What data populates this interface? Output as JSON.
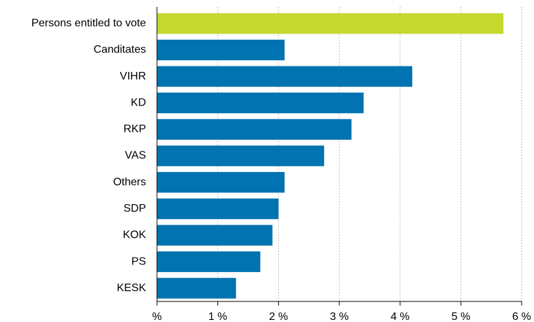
{
  "chart_data": {
    "type": "bar",
    "orientation": "horizontal",
    "categories": [
      "Persons entitled to vote",
      "Canditates",
      "VIHR",
      "KD",
      "RKP",
      "VAS",
      "Others",
      "SDP",
      "KOK",
      "PS",
      "KESK"
    ],
    "values": [
      5.7,
      2.1,
      4.2,
      3.4,
      3.2,
      2.75,
      2.1,
      2.0,
      1.9,
      1.7,
      1.3
    ],
    "colors": [
      "#c5d82e",
      "#0073b0",
      "#0073b0",
      "#0073b0",
      "#0073b0",
      "#0073b0",
      "#0073b0",
      "#0073b0",
      "#0073b0",
      "#0073b0",
      "#0073b0"
    ],
    "xlim": [
      0,
      6
    ],
    "xticks": [
      {
        "value": 0,
        "label": "%"
      },
      {
        "value": 1,
        "label": "1 %"
      },
      {
        "value": 2,
        "label": "2 %"
      },
      {
        "value": 3,
        "label": "3 %"
      },
      {
        "value": 4,
        "label": "4 %"
      },
      {
        "value": 5,
        "label": "5 %"
      },
      {
        "value": 6,
        "label": "6 %"
      }
    ],
    "grid": true
  }
}
